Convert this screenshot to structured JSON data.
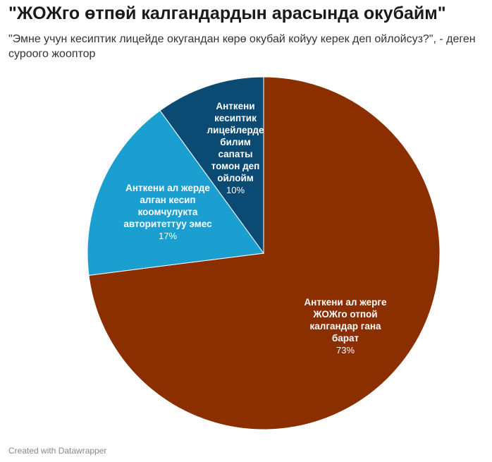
{
  "chart_data": {
    "type": "pie",
    "title": "\"ЖОЖго өтпөй калгандардын арасында окубайм\"",
    "subtitle": "\"Эмне учун кесиптик лицейде окугандан көрө окубай койуу керек деп ойлойсуз?\", - деген суроого жооптор",
    "slices": [
      {
        "label": "Анткени ал жерге ЖОЖго өтпой калгандар гана барат",
        "label_lines": [
          "Анткени ал жерге",
          "ЖОЖго отпой",
          "калгандар гана",
          "барат"
        ],
        "value": 73,
        "value_text": "73%",
        "color": "#8b2e00"
      },
      {
        "label": "Анткени ал жерде алган кесип коомчулукта авторитеттуу эмес",
        "label_lines": [
          "Анткени ал жерде",
          "алган кесип",
          "коомчулукта",
          "авторитеттуу эмес"
        ],
        "value": 17,
        "value_text": "17%",
        "color": "#1a9fd0"
      },
      {
        "label": "Анткени кесиптик лицейлерде билим сапаты томон деп ойлойм",
        "label_lines": [
          "Анткени",
          "кесиптик",
          "лицейлерде",
          "билим",
          "сапаты",
          "томон деп",
          "ойлойм"
        ],
        "value": 10,
        "value_text": "10%",
        "color": "#0b4a72"
      }
    ]
  },
  "footer": "Created with Datawrapper"
}
